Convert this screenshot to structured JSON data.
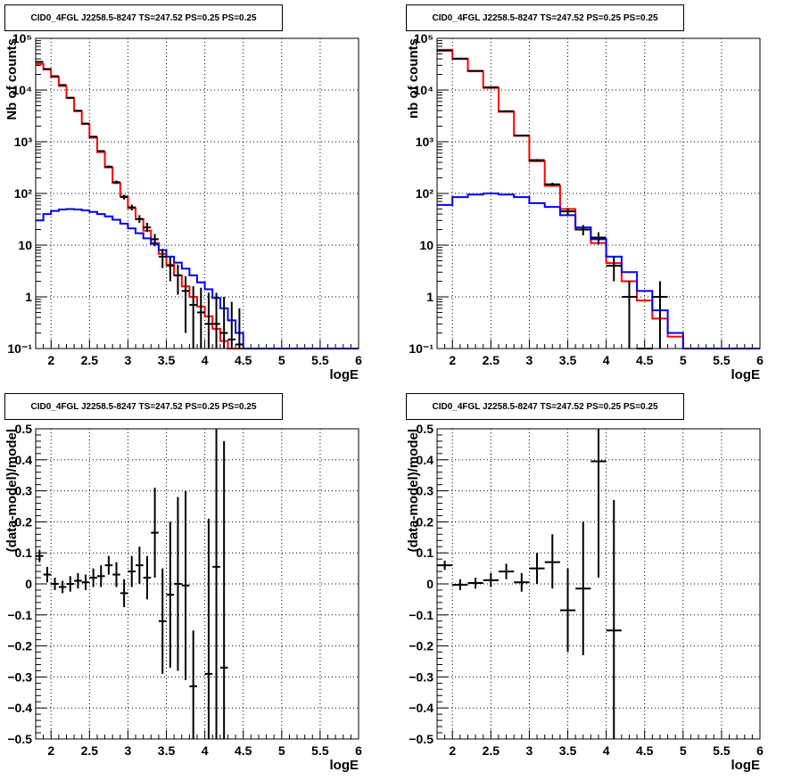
{
  "chart_data": [
    {
      "type": "line",
      "panel": "top-left",
      "title": "CID0_4FGL J2258.5-8247 TS=247.52 PS=0.25 PS=0.25",
      "xlabel": "logE",
      "ylabel": "Nb of counts",
      "xlim": [
        1.8,
        6.0
      ],
      "ylim": [
        0.1,
        100000
      ],
      "log_y": true,
      "grid": true,
      "x_ticks": [
        "2",
        "2.5",
        "3",
        "3.5",
        "4",
        "4.5",
        "5",
        "5.5",
        "6"
      ],
      "y_ticks": [
        "10⁻¹",
        "1",
        "10",
        "10²",
        "10³",
        "10⁴",
        "10⁵"
      ],
      "bin_edges": [
        1.8,
        1.9,
        2.0,
        2.1,
        2.2,
        2.3,
        2.4,
        2.5,
        2.6,
        2.7,
        2.8,
        2.9,
        3.0,
        3.1,
        3.2,
        3.3,
        3.4,
        3.5,
        3.6,
        3.7,
        3.8,
        3.9,
        4.0,
        4.1,
        4.2,
        4.3,
        4.4,
        4.5,
        4.6,
        4.7,
        4.8,
        4.9,
        5.0,
        5.1,
        5.2,
        5.3,
        5.4,
        5.5,
        5.6,
        5.7,
        5.8,
        5.9,
        6.0
      ],
      "series": [
        {
          "color": "#ff0000",
          "kind": "step",
          "values": [
            32000,
            25000,
            18000,
            12000,
            7000,
            3900,
            2200,
            1200,
            630,
            320,
            160,
            88,
            52,
            32,
            19,
            11,
            6.8,
            4.2,
            2.6,
            1.6,
            1.0,
            0.65,
            0.42,
            0.24,
            0.14,
            0.09,
            0.09,
            0.09,
            0.09,
            0.09,
            0.09,
            0.09,
            0.09,
            0.09,
            0.09,
            0.09,
            0.09,
            0.09,
            0.09,
            0.09,
            0.09,
            0.09
          ]
        },
        {
          "color": "#0000ff",
          "kind": "step",
          "values": [
            30,
            40,
            46,
            49,
            50,
            49,
            47,
            44,
            40,
            36,
            31,
            26,
            21,
            17,
            13.5,
            10.5,
            8,
            6,
            4.6,
            3.5,
            2.6,
            1.9,
            1.4,
            0.95,
            0.6,
            0.35,
            0.2,
            0.09,
            0.09,
            0.09,
            0.09,
            0.09,
            0.09,
            0.09,
            0.09,
            0.09,
            0.09,
            0.09,
            0.09,
            0.09,
            0.09,
            0.09
          ]
        }
      ],
      "data_points": [
        {
          "x": 1.85,
          "y": 35000,
          "lo": 34800,
          "hi": 35200,
          "xe": 0.05
        },
        {
          "x": 1.95,
          "y": 25500,
          "lo": 25300,
          "hi": 25700,
          "xe": 0.05
        },
        {
          "x": 2.05,
          "y": 18500,
          "lo": 18300,
          "hi": 18700,
          "xe": 0.05
        },
        {
          "x": 2.15,
          "y": 12500,
          "lo": 12400,
          "hi": 12600,
          "xe": 0.05
        },
        {
          "x": 2.25,
          "y": 7100,
          "lo": 7000,
          "hi": 7200,
          "xe": 0.05
        },
        {
          "x": 2.35,
          "y": 4000,
          "lo": 3940,
          "hi": 4060,
          "xe": 0.05
        },
        {
          "x": 2.45,
          "y": 2250,
          "lo": 2200,
          "hi": 2300,
          "xe": 0.05
        },
        {
          "x": 2.55,
          "y": 1250,
          "lo": 1215,
          "hi": 1285,
          "xe": 0.05
        },
        {
          "x": 2.65,
          "y": 660,
          "lo": 635,
          "hi": 685,
          "xe": 0.05
        },
        {
          "x": 2.75,
          "y": 330,
          "lo": 312,
          "hi": 348,
          "xe": 0.05
        },
        {
          "x": 2.85,
          "y": 165,
          "lo": 152,
          "hi": 178,
          "xe": 0.05
        },
        {
          "x": 2.95,
          "y": 85,
          "lo": 76,
          "hi": 94,
          "xe": 0.05
        },
        {
          "x": 3.05,
          "y": 54,
          "lo": 47,
          "hi": 61,
          "xe": 0.05
        },
        {
          "x": 3.15,
          "y": 32,
          "lo": 27,
          "hi": 38,
          "xe": 0.05
        },
        {
          "x": 3.25,
          "y": 22,
          "lo": 18,
          "hi": 27,
          "xe": 0.05
        },
        {
          "x": 3.35,
          "y": 13,
          "lo": 9.5,
          "hi": 16.5,
          "xe": 0.05
        },
        {
          "x": 3.45,
          "y": 6,
          "lo": 3.6,
          "hi": 8.5,
          "xe": 0.05
        },
        {
          "x": 3.55,
          "y": 4,
          "lo": 2,
          "hi": 6,
          "xe": 0.05
        },
        {
          "x": 3.65,
          "y": 2.6,
          "lo": 1.1,
          "hi": 4.2,
          "xe": 0.05
        },
        {
          "x": 3.75,
          "y": 1.3,
          "lo": 0.2,
          "hi": 2.5,
          "xe": 0.05
        },
        {
          "x": 3.85,
          "y": 0.7,
          "lo": 0.1,
          "hi": 1.6,
          "xe": 0.05
        },
        {
          "x": 3.95,
          "y": 0.5,
          "lo": 0.1,
          "hi": 1.5,
          "xe": 0.05
        },
        {
          "x": 4.05,
          "y": 0.3,
          "lo": 0.1,
          "hi": 1.2,
          "xe": 0.05
        },
        {
          "x": 4.15,
          "y": 0.3,
          "lo": 0.1,
          "hi": 1.2,
          "xe": 0.05
        },
        {
          "x": 4.25,
          "y": 0.2,
          "lo": 0.1,
          "hi": 1.0,
          "xe": 0.05
        },
        {
          "x": 4.35,
          "y": 0.15,
          "lo": 0.1,
          "hi": 0.8,
          "xe": 0.05
        },
        {
          "x": 4.45,
          "y": 0.12,
          "lo": 0.1,
          "hi": 0.6,
          "xe": 0.05
        }
      ]
    },
    {
      "type": "line",
      "panel": "top-right",
      "title": "CID0_4FGL J2258.5-8247 TS=247.52 PS=0.25 PS=0.25",
      "xlabel": "logE",
      "ylabel": "nb of counts",
      "xlim": [
        1.8,
        6.0
      ],
      "ylim": [
        0.1,
        100000
      ],
      "log_y": true,
      "grid": true,
      "x_ticks": [
        "2",
        "2.5",
        "3",
        "3.5",
        "4",
        "4.5",
        "5",
        "5.5",
        "6"
      ],
      "y_ticks": [
        "10⁻¹",
        "1",
        "10",
        "10²",
        "10³",
        "10⁴",
        "10⁵"
      ],
      "bin_edges": [
        1.8,
        2.0,
        2.2,
        2.4,
        2.6,
        2.8,
        3.0,
        3.2,
        3.4,
        3.6,
        3.8,
        4.0,
        4.2,
        4.4,
        4.6,
        4.8,
        5.0,
        5.2,
        5.4,
        5.6,
        5.8,
        6.0
      ],
      "series": [
        {
          "color": "#ff0000",
          "kind": "step",
          "values": [
            60000,
            40000,
            23000,
            11000,
            3800,
            1300,
            420,
            140,
            50,
            20,
            11,
            4.5,
            2,
            0.85,
            0.38,
            0.17,
            0.09,
            0.09,
            0.09,
            0.09,
            0.09
          ]
        },
        {
          "color": "#0000ff",
          "kind": "step",
          "values": [
            60,
            85,
            95,
            100,
            95,
            85,
            65,
            55,
            38,
            22,
            13,
            6,
            3,
            1.3,
            0.55,
            0.2,
            0.09,
            0.09,
            0.09,
            0.09,
            0.09
          ]
        }
      ],
      "data_points": [
        {
          "x": 1.9,
          "y": 58000,
          "lo": 57700,
          "hi": 58300,
          "xe": 0.1
        },
        {
          "x": 2.1,
          "y": 40500,
          "lo": 40200,
          "hi": 40800,
          "xe": 0.1
        },
        {
          "x": 2.3,
          "y": 23500,
          "lo": 23300,
          "hi": 23700,
          "xe": 0.1
        },
        {
          "x": 2.5,
          "y": 11300,
          "lo": 11200,
          "hi": 11400,
          "xe": 0.1
        },
        {
          "x": 2.7,
          "y": 3900,
          "lo": 3840,
          "hi": 3960,
          "xe": 0.1
        },
        {
          "x": 2.9,
          "y": 1320,
          "lo": 1285,
          "hi": 1355,
          "xe": 0.1
        },
        {
          "x": 3.1,
          "y": 440,
          "lo": 419,
          "hi": 461,
          "xe": 0.1
        },
        {
          "x": 3.3,
          "y": 150,
          "lo": 138,
          "hi": 162,
          "xe": 0.1
        },
        {
          "x": 3.5,
          "y": 45,
          "lo": 38,
          "hi": 52,
          "xe": 0.1
        },
        {
          "x": 3.7,
          "y": 20,
          "lo": 15.5,
          "hi": 24.5,
          "xe": 0.1
        },
        {
          "x": 3.9,
          "y": 14,
          "lo": 10.3,
          "hi": 17.7,
          "xe": 0.1
        },
        {
          "x": 4.1,
          "y": 4,
          "lo": 2,
          "hi": 6,
          "xe": 0.1
        },
        {
          "x": 4.3,
          "y": 1,
          "lo": 0.1,
          "hi": 2,
          "xe": 0.1
        },
        {
          "x": 4.5,
          "y": 0.1,
          "lo": 0.1,
          "hi": 0.1,
          "xe": 0.1
        },
        {
          "x": 4.7,
          "y": 1,
          "lo": 0.1,
          "hi": 2,
          "xe": 0.1
        }
      ]
    },
    {
      "type": "scatter",
      "panel": "bottom-left",
      "title": "CID0_4FGL J2258.5-8247 TS=247.52 PS=0.25 PS=0.25",
      "xlabel": "logE",
      "ylabel": "(data-model)/model",
      "xlim": [
        1.8,
        6.0
      ],
      "ylim": [
        -0.5,
        0.5
      ],
      "log_y": false,
      "grid": true,
      "x_ticks": [
        "2",
        "2.5",
        "3",
        "3.5",
        "4",
        "4.5",
        "5",
        "5.5",
        "6"
      ],
      "y_ticks": [
        "−0.5",
        "−0.4",
        "−0.3",
        "−0.2",
        "−0.1",
        "0",
        "0.1",
        "0.2",
        "0.3",
        "0.4",
        "0.5"
      ],
      "data_points": [
        {
          "x": 1.85,
          "y": 0.09,
          "lo": 0.07,
          "hi": 0.11,
          "xe": 0.05
        },
        {
          "x": 1.95,
          "y": 0.03,
          "lo": 0.005,
          "hi": 0.055,
          "xe": 0.05
        },
        {
          "x": 2.05,
          "y": 0.0,
          "lo": -0.02,
          "hi": 0.02,
          "xe": 0.05
        },
        {
          "x": 2.15,
          "y": -0.01,
          "lo": -0.03,
          "hi": 0.01,
          "xe": 0.05
        },
        {
          "x": 2.25,
          "y": 0.0,
          "lo": -0.025,
          "hi": 0.025,
          "xe": 0.05
        },
        {
          "x": 2.35,
          "y": 0.01,
          "lo": -0.015,
          "hi": 0.035,
          "xe": 0.05
        },
        {
          "x": 2.45,
          "y": 0.005,
          "lo": -0.02,
          "hi": 0.03,
          "xe": 0.05
        },
        {
          "x": 2.55,
          "y": 0.02,
          "lo": -0.01,
          "hi": 0.05,
          "xe": 0.05
        },
        {
          "x": 2.65,
          "y": 0.025,
          "lo": -0.01,
          "hi": 0.06,
          "xe": 0.05
        },
        {
          "x": 2.75,
          "y": 0.06,
          "lo": 0.03,
          "hi": 0.09,
          "xe": 0.05
        },
        {
          "x": 2.85,
          "y": 0.03,
          "lo": -0.01,
          "hi": 0.07,
          "xe": 0.05
        },
        {
          "x": 2.95,
          "y": -0.03,
          "lo": -0.075,
          "hi": 0.015,
          "xe": 0.05
        },
        {
          "x": 3.05,
          "y": 0.04,
          "lo": -0.01,
          "hi": 0.09,
          "xe": 0.05
        },
        {
          "x": 3.15,
          "y": 0.06,
          "lo": 0.0,
          "hi": 0.12,
          "xe": 0.05
        },
        {
          "x": 3.25,
          "y": 0.02,
          "lo": -0.05,
          "hi": 0.09,
          "xe": 0.05
        },
        {
          "x": 3.35,
          "y": 0.165,
          "lo": 0.02,
          "hi": 0.31,
          "xe": 0.05
        },
        {
          "x": 3.45,
          "y": -0.12,
          "lo": -0.29,
          "hi": 0.05,
          "xe": 0.05
        },
        {
          "x": 3.55,
          "y": -0.035,
          "lo": -0.27,
          "hi": 0.2,
          "xe": 0.05
        },
        {
          "x": 3.65,
          "y": 0.0,
          "lo": -0.28,
          "hi": 0.28,
          "xe": 0.05
        },
        {
          "x": 3.75,
          "y": -0.005,
          "lo": -0.31,
          "hi": 0.3,
          "xe": 0.05
        },
        {
          "x": 3.85,
          "y": -0.33,
          "lo": -0.5,
          "hi": -0.15,
          "xe": 0.05
        },
        {
          "x": 4.05,
          "y": -0.29,
          "lo": -0.5,
          "hi": 0.21,
          "xe": 0.05
        },
        {
          "x": 4.15,
          "y": 0.055,
          "lo": -0.5,
          "hi": 0.5,
          "xe": 0.05
        },
        {
          "x": 4.25,
          "y": -0.27,
          "lo": -0.5,
          "hi": 0.46,
          "xe": 0.05
        }
      ]
    },
    {
      "type": "scatter",
      "panel": "bottom-right",
      "title": "CID0_4FGL J2258.5-8247 TS=247.52 PS=0.25 PS=0.25",
      "xlabel": "logE",
      "ylabel": "(data-model)/model",
      "xlim": [
        1.8,
        6.0
      ],
      "ylim": [
        -0.5,
        0.5
      ],
      "log_y": false,
      "grid": true,
      "x_ticks": [
        "2",
        "2.5",
        "3",
        "3.5",
        "4",
        "4.5",
        "5",
        "5.5",
        "6"
      ],
      "y_ticks": [
        "−0.5",
        "−0.4",
        "−0.3",
        "−0.2",
        "−0.1",
        "0",
        "0.1",
        "0.2",
        "0.3",
        "0.4",
        "0.5"
      ],
      "data_points": [
        {
          "x": 1.9,
          "y": 0.06,
          "lo": 0.045,
          "hi": 0.075,
          "xe": 0.1
        },
        {
          "x": 2.1,
          "y": -0.003,
          "lo": -0.02,
          "hi": 0.015,
          "xe": 0.1
        },
        {
          "x": 2.3,
          "y": 0.003,
          "lo": -0.015,
          "hi": 0.02,
          "xe": 0.1
        },
        {
          "x": 2.5,
          "y": 0.012,
          "lo": -0.01,
          "hi": 0.035,
          "xe": 0.1
        },
        {
          "x": 2.7,
          "y": 0.04,
          "lo": 0.015,
          "hi": 0.065,
          "xe": 0.1
        },
        {
          "x": 2.9,
          "y": 0.005,
          "lo": -0.025,
          "hi": 0.035,
          "xe": 0.1
        },
        {
          "x": 3.1,
          "y": 0.05,
          "lo": 0.0,
          "hi": 0.1,
          "xe": 0.1
        },
        {
          "x": 3.3,
          "y": 0.07,
          "lo": -0.015,
          "hi": 0.16,
          "xe": 0.1
        },
        {
          "x": 3.5,
          "y": -0.085,
          "lo": -0.22,
          "hi": 0.05,
          "xe": 0.1
        },
        {
          "x": 3.7,
          "y": -0.015,
          "lo": -0.23,
          "hi": 0.2,
          "xe": 0.1
        },
        {
          "x": 3.9,
          "y": 0.395,
          "lo": 0.02,
          "hi": 0.5,
          "xe": 0.1
        },
        {
          "x": 4.1,
          "y": -0.15,
          "lo": -0.5,
          "hi": 0.27,
          "xe": 0.1
        }
      ]
    }
  ]
}
